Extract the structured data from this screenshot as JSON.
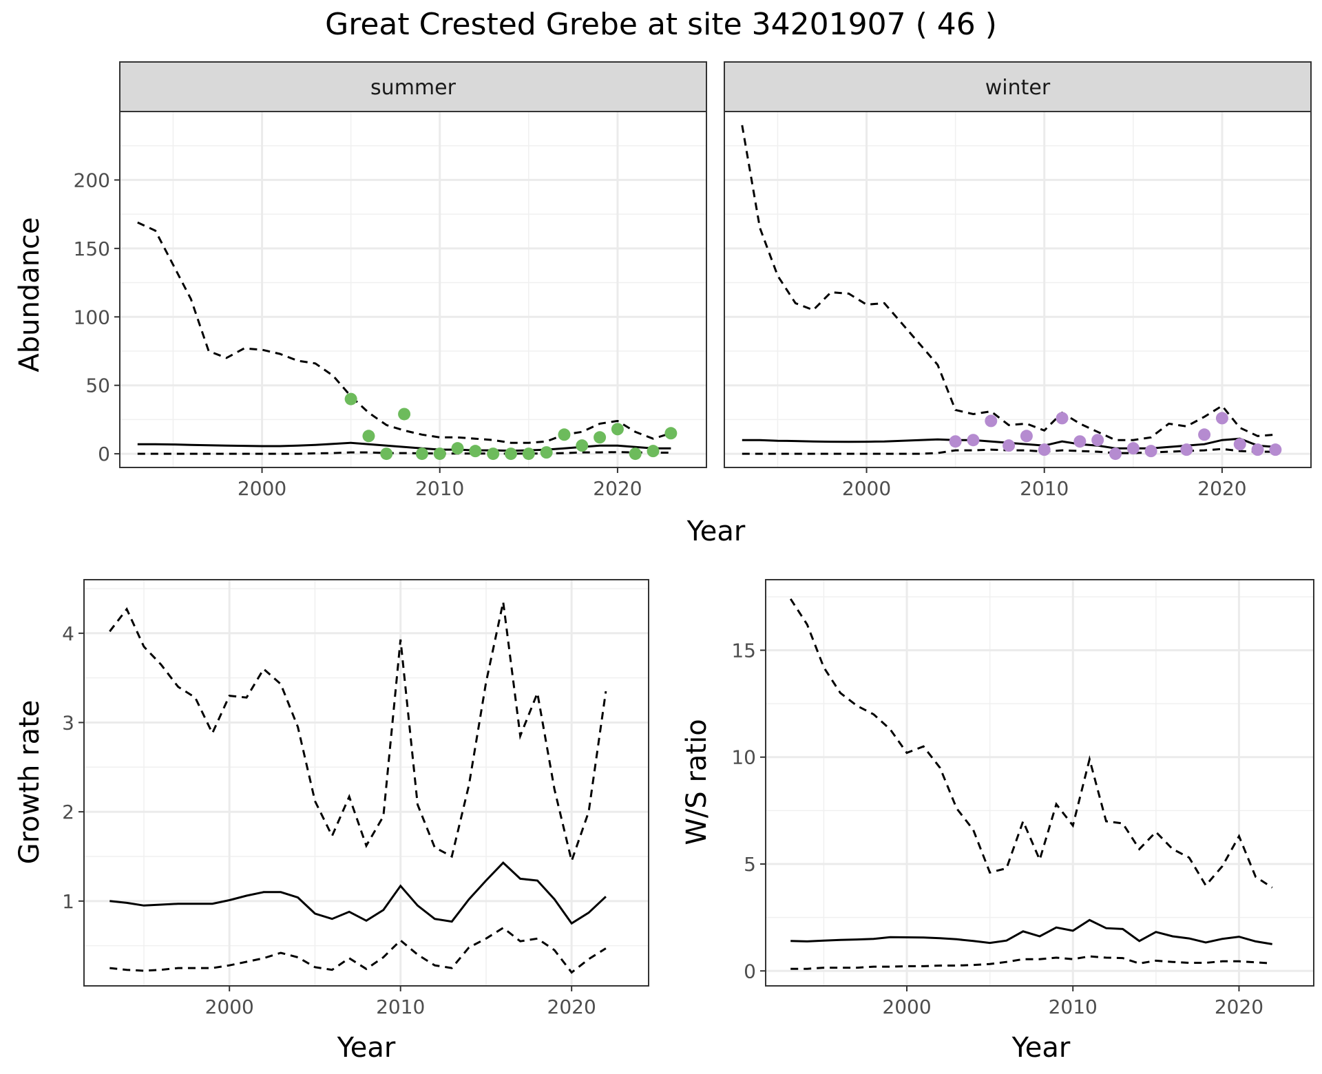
{
  "title": "Great Crested Grebe at site 34201907 ( 46 )",
  "colors": {
    "summer_points": "#6dbb5c",
    "winter_points": "#b58bd0",
    "lines": "#000000"
  },
  "chart_data": [
    {
      "id": "abundance",
      "type": "line",
      "facets": [
        "summer",
        "winter"
      ],
      "xlabel": "Year",
      "ylabel": "Abundance",
      "xlim": [
        1992,
        2025
      ],
      "ylim": [
        -10,
        250
      ],
      "x_ticks": [
        2000,
        2010,
        2020
      ],
      "y_ticks": [
        0,
        50,
        100,
        150,
        200
      ],
      "grid": true,
      "x": [
        1993,
        1994,
        1995,
        1996,
        1997,
        1998,
        1999,
        2000,
        2001,
        2002,
        2003,
        2004,
        2005,
        2006,
        2007,
        2008,
        2009,
        2010,
        2011,
        2012,
        2013,
        2014,
        2015,
        2016,
        2017,
        2018,
        2019,
        2020,
        2021,
        2022,
        2023
      ],
      "panels": {
        "summer": {
          "mean": [
            7,
            7,
            6.8,
            6.5,
            6.2,
            6,
            5.8,
            5.6,
            5.6,
            6,
            6.5,
            7.2,
            8,
            7,
            6,
            5,
            4,
            3,
            3,
            2.5,
            2.5,
            2.2,
            2.5,
            3,
            4,
            5,
            6,
            6,
            5,
            4,
            4
          ],
          "upper": [
            169,
            163,
            138,
            113,
            75,
            70,
            77,
            76,
            73,
            68,
            66,
            57,
            42,
            30,
            21,
            17,
            14,
            12,
            12,
            11,
            10,
            8,
            8,
            9,
            14,
            16,
            22,
            24,
            16,
            11,
            15
          ],
          "lower": [
            0,
            0,
            0,
            0,
            0,
            0,
            0,
            0,
            0,
            0,
            0.3,
            0.5,
            1,
            1,
            0.5,
            0.5,
            0.3,
            0.2,
            0.2,
            0.2,
            0.2,
            0.1,
            0.2,
            0.2,
            0.5,
            1,
            1,
            1.2,
            1,
            0.8,
            0.8
          ],
          "points": [
            [
              2005,
              40
            ],
            [
              2006,
              13
            ],
            [
              2007,
              0
            ],
            [
              2008,
              29
            ],
            [
              2009,
              0
            ],
            [
              2010,
              0
            ],
            [
              2011,
              4
            ],
            [
              2012,
              2
            ],
            [
              2013,
              0
            ],
            [
              2014,
              0
            ],
            [
              2015,
              0
            ],
            [
              2016,
              1
            ],
            [
              2017,
              14
            ],
            [
              2018,
              6
            ],
            [
              2019,
              12
            ],
            [
              2020,
              18
            ],
            [
              2021,
              0
            ],
            [
              2022,
              2
            ],
            [
              2023,
              15
            ]
          ]
        },
        "winter": {
          "mean": [
            10,
            10,
            9.5,
            9.3,
            9,
            8.8,
            8.7,
            8.8,
            9,
            9.5,
            10,
            10.5,
            10,
            10,
            9,
            8,
            7,
            6,
            9,
            7,
            6,
            4,
            4,
            4,
            5,
            6,
            7,
            10,
            11,
            6,
            5
          ],
          "upper": [
            240,
            165,
            130,
            110,
            105,
            118,
            117,
            109,
            110,
            95,
            80,
            65,
            32,
            29,
            31,
            21,
            22,
            17,
            30,
            22,
            16,
            10,
            10,
            12,
            22,
            20,
            27,
            35,
            19,
            13,
            14
          ],
          "lower": [
            0,
            0,
            0,
            0,
            0,
            0,
            0,
            0,
            0,
            0,
            0,
            0.5,
            2.5,
            2.5,
            3,
            2.5,
            2.5,
            1.5,
            2.5,
            2,
            1.5,
            0.5,
            0.5,
            1,
            1.5,
            2,
            2.5,
            3.5,
            2,
            1.5,
            1.5
          ],
          "points": [
            [
              2005,
              9
            ],
            [
              2006,
              10
            ],
            [
              2007,
              24
            ],
            [
              2008,
              6
            ],
            [
              2009,
              13
            ],
            [
              2010,
              3
            ],
            [
              2011,
              26
            ],
            [
              2012,
              9
            ],
            [
              2013,
              10
            ],
            [
              2014,
              0
            ],
            [
              2015,
              4
            ],
            [
              2016,
              2
            ],
            [
              2018,
              3
            ],
            [
              2019,
              14
            ],
            [
              2020,
              26
            ],
            [
              2021,
              7
            ],
            [
              2022,
              3
            ],
            [
              2023,
              3
            ]
          ]
        }
      }
    },
    {
      "id": "growth",
      "type": "line",
      "xlabel": "Year",
      "ylabel": "Growth rate",
      "xlim": [
        1991.5,
        2024.5
      ],
      "ylim": [
        0.05,
        4.6
      ],
      "x_ticks": [
        2000,
        2010,
        2020
      ],
      "y_ticks": [
        1,
        2,
        3,
        4
      ],
      "grid": true,
      "x": [
        1993,
        1994,
        1995,
        1996,
        1997,
        1998,
        1999,
        2000,
        2001,
        2002,
        2003,
        2004,
        2005,
        2006,
        2007,
        2008,
        2009,
        2010,
        2011,
        2012,
        2013,
        2014,
        2015,
        2016,
        2017,
        2018,
        2019,
        2020,
        2021,
        2022
      ],
      "mean": [
        1,
        0.98,
        0.95,
        0.96,
        0.97,
        0.97,
        0.97,
        1.01,
        1.06,
        1.1,
        1.1,
        1.04,
        0.86,
        0.8,
        0.88,
        0.78,
        0.9,
        1.17,
        0.95,
        0.8,
        0.77,
        1.02,
        1.23,
        1.43,
        1.25,
        1.23,
        1.02,
        0.75,
        0.87,
        1.05
      ],
      "upper": [
        4.02,
        4.27,
        3.85,
        3.65,
        3.4,
        3.28,
        2.88,
        3.3,
        3.28,
        3.6,
        3.43,
        2.95,
        2.12,
        1.73,
        2.17,
        1.62,
        1.95,
        3.93,
        2.08,
        1.6,
        1.5,
        2.3,
        3.45,
        4.35,
        2.85,
        3.33,
        2.25,
        1.45,
        2.0,
        3.35
      ],
      "lower": [
        0.25,
        0.23,
        0.22,
        0.23,
        0.25,
        0.25,
        0.25,
        0.28,
        0.32,
        0.36,
        0.42,
        0.37,
        0.26,
        0.23,
        0.36,
        0.24,
        0.37,
        0.56,
        0.4,
        0.28,
        0.25,
        0.48,
        0.58,
        0.7,
        0.55,
        0.58,
        0.45,
        0.2,
        0.35,
        0.47
      ]
    },
    {
      "id": "ws_ratio",
      "type": "line",
      "xlabel": "Year",
      "ylabel": "W/S ratio",
      "xlim": [
        1991.5,
        2024.5
      ],
      "ylim": [
        -0.7,
        18.3
      ],
      "x_ticks": [
        2000,
        2010,
        2020
      ],
      "y_ticks": [
        0,
        5,
        10,
        15
      ],
      "grid": true,
      "x": [
        1993,
        1994,
        1995,
        1996,
        1997,
        1998,
        1999,
        2000,
        2001,
        2002,
        2003,
        2004,
        2005,
        2006,
        2007,
        2008,
        2009,
        2010,
        2011,
        2012,
        2013,
        2014,
        2015,
        2016,
        2017,
        2018,
        2019,
        2020,
        2021,
        2022
      ],
      "mean": [
        1.4,
        1.38,
        1.42,
        1.45,
        1.47,
        1.5,
        1.58,
        1.57,
        1.56,
        1.53,
        1.48,
        1.4,
        1.31,
        1.42,
        1.85,
        1.62,
        2.03,
        1.88,
        2.38,
        2.0,
        1.96,
        1.4,
        1.82,
        1.62,
        1.52,
        1.33,
        1.5,
        1.6,
        1.38,
        1.25
      ],
      "upper": [
        17.4,
        16.2,
        14.2,
        13.0,
        12.4,
        12.0,
        11.3,
        10.2,
        10.5,
        9.5,
        7.6,
        6.6,
        4.6,
        4.8,
        7.0,
        5.2,
        7.8,
        6.8,
        9.9,
        7.0,
        6.9,
        5.7,
        6.5,
        5.7,
        5.3,
        4.0,
        4.9,
        6.3,
        4.4,
        3.9
      ],
      "lower": [
        0.1,
        0.1,
        0.15,
        0.15,
        0.15,
        0.2,
        0.2,
        0.22,
        0.22,
        0.25,
        0.25,
        0.28,
        0.32,
        0.42,
        0.55,
        0.55,
        0.62,
        0.55,
        0.68,
        0.62,
        0.6,
        0.35,
        0.48,
        0.42,
        0.38,
        0.38,
        0.45,
        0.45,
        0.4,
        0.35
      ]
    }
  ]
}
